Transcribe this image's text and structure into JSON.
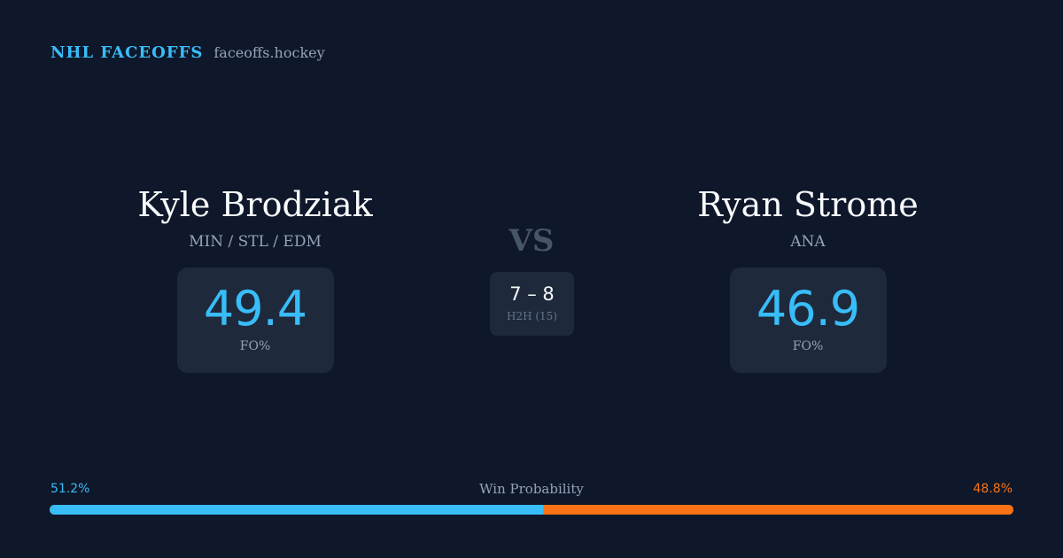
{
  "brand": {
    "name": "NHL FACEOFFS",
    "domain": "faceoffs.hockey"
  },
  "player_left": {
    "name": "Kyle Brodziak",
    "teams": "MIN / STL / EDM",
    "fo_pct": "49.4",
    "fo_label": "FO%"
  },
  "player_right": {
    "name": "Ryan Strome",
    "teams": "ANA",
    "fo_pct": "46.9",
    "fo_label": "FO%"
  },
  "versus": {
    "label": "VS",
    "h2h_score": "7 – 8",
    "h2h_label": "H2H (15)"
  },
  "win_probability": {
    "title": "Win Probability",
    "left_label": "51.2%",
    "right_label": "48.8%",
    "left_value": 51.2,
    "right_value": 48.8
  },
  "colors": {
    "background": "#0f172a",
    "card": "#1e293b",
    "accent_left": "#38bdf8",
    "accent_right": "#f97316",
    "muted": "#94a3b8"
  }
}
